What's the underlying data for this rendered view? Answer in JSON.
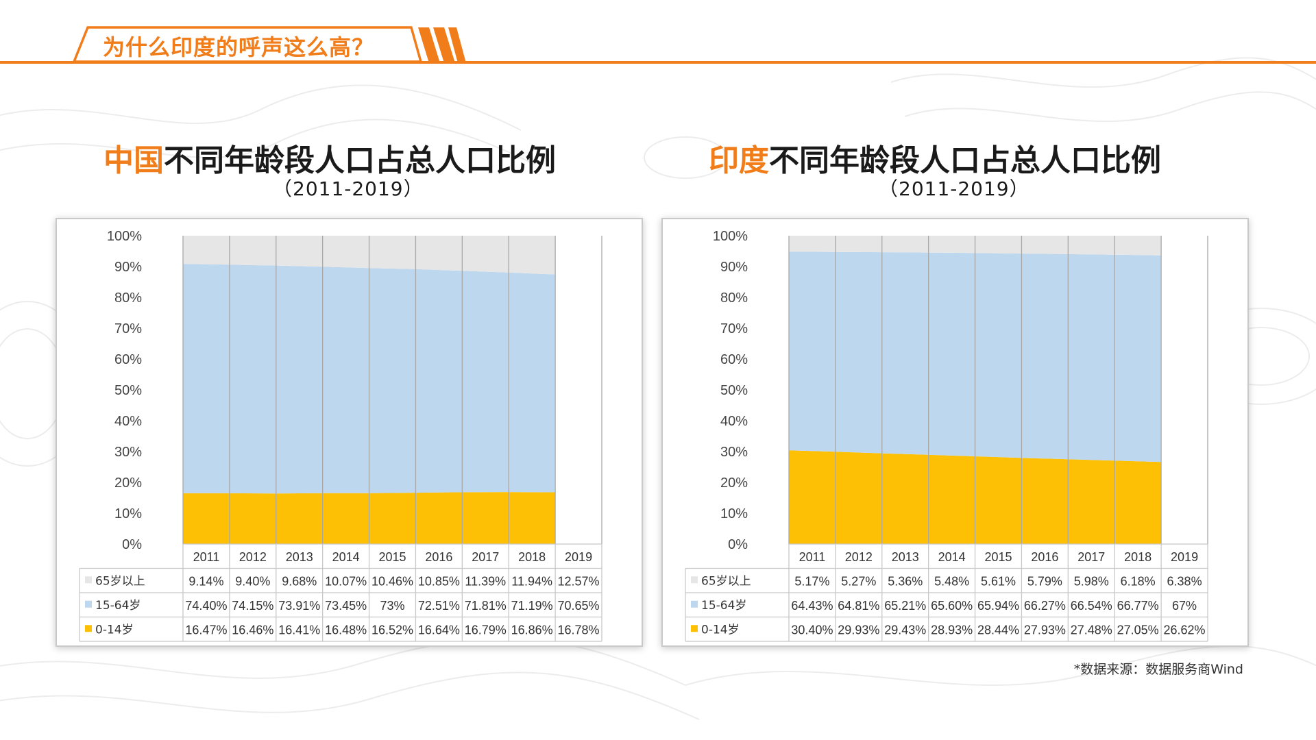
{
  "header": {
    "title": "为什么印度的呼声这么高？"
  },
  "charts": [
    {
      "title_highlight": "中国",
      "title_rest": "不同年龄段人口占总人口比例",
      "subtitle": "（2011-2019）"
    },
    {
      "title_highlight": "印度",
      "title_rest": "不同年龄段人口占总人口比例",
      "subtitle": "（2011-2019）"
    }
  ],
  "colors": {
    "accent": "#f07d1a",
    "series_0_14": "#fec004",
    "series_15_64": "#bdd7ee",
    "series_65": "#e7e6e6"
  },
  "chart_data": [
    {
      "type": "area",
      "stacked": true,
      "x": [
        "2011",
        "2012",
        "2013",
        "2014",
        "2015",
        "2016",
        "2017",
        "2018",
        "2019"
      ],
      "ylim": [
        0,
        100
      ],
      "y_ticks": [
        "0%",
        "10%",
        "20%",
        "30%",
        "40%",
        "50%",
        "60%",
        "70%",
        "80%",
        "90%",
        "100%"
      ],
      "grid": "vertical",
      "data_table": true,
      "series": [
        {
          "name": "0-14岁",
          "values": [
            16.47,
            16.46,
            16.41,
            16.48,
            16.52,
            16.64,
            16.79,
            16.86,
            16.78
          ],
          "labels": [
            "16.47%",
            "16.46%",
            "16.41%",
            "16.48%",
            "16.52%",
            "16.64%",
            "16.79%",
            "16.86%",
            "16.78%"
          ]
        },
        {
          "name": "15-64岁",
          "values": [
            74.4,
            74.15,
            73.91,
            73.45,
            73,
            72.51,
            71.81,
            71.19,
            70.65
          ],
          "labels": [
            "74.40%",
            "74.15%",
            "73.91%",
            "73.45%",
            "73%",
            "72.51%",
            "71.81%",
            "71.19%",
            "70.65%"
          ]
        },
        {
          "name": "65岁以上",
          "values": [
            9.14,
            9.4,
            9.68,
            10.07,
            10.46,
            10.85,
            11.39,
            11.94,
            12.57
          ],
          "labels": [
            "9.14%",
            "9.40%",
            "9.68%",
            "10.07%",
            "10.46%",
            "10.85%",
            "11.39%",
            "11.94%",
            "12.57%"
          ]
        }
      ]
    },
    {
      "type": "area",
      "stacked": true,
      "x": [
        "2011",
        "2012",
        "2013",
        "2014",
        "2015",
        "2016",
        "2017",
        "2018",
        "2019"
      ],
      "ylim": [
        0,
        100
      ],
      "y_ticks": [
        "0%",
        "10%",
        "20%",
        "30%",
        "40%",
        "50%",
        "60%",
        "70%",
        "80%",
        "90%",
        "100%"
      ],
      "grid": "vertical",
      "data_table": true,
      "series": [
        {
          "name": "0-14岁",
          "values": [
            30.4,
            29.93,
            29.43,
            28.93,
            28.44,
            27.93,
            27.48,
            27.05,
            26.62
          ],
          "labels": [
            "30.40%",
            "29.93%",
            "29.43%",
            "28.93%",
            "28.44%",
            "27.93%",
            "27.48%",
            "27.05%",
            "26.62%"
          ]
        },
        {
          "name": "15-64岁",
          "values": [
            64.43,
            64.81,
            65.21,
            65.6,
            65.94,
            66.27,
            66.54,
            66.77,
            67
          ],
          "labels": [
            "64.43%",
            "64.81%",
            "65.21%",
            "65.60%",
            "65.94%",
            "66.27%",
            "66.54%",
            "66.77%",
            "67%"
          ]
        },
        {
          "name": "65岁以上",
          "values": [
            5.17,
            5.27,
            5.36,
            5.48,
            5.61,
            5.79,
            5.98,
            6.18,
            6.38
          ],
          "labels": [
            "5.17%",
            "5.27%",
            "5.36%",
            "5.48%",
            "5.61%",
            "5.79%",
            "5.98%",
            "6.18%",
            "6.38%"
          ]
        }
      ]
    }
  ],
  "source": "*数据来源：数据服务商Wind"
}
